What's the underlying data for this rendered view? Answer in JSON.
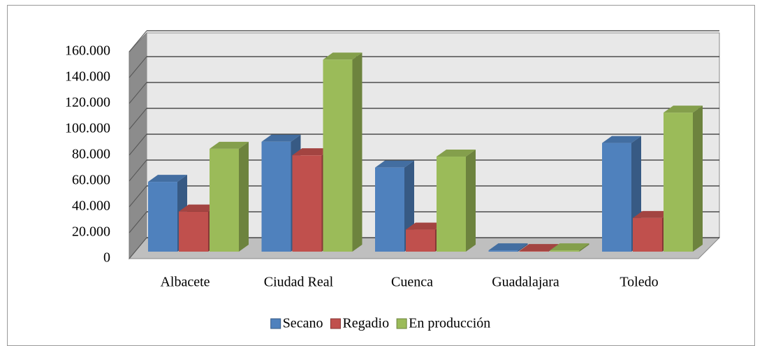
{
  "chart_data": {
    "type": "bar3d",
    "categories": [
      "Albacete",
      "Ciudad Real",
      "Cuenca",
      "Guadalajara",
      "Toledo"
    ],
    "series": [
      {
        "name": "Secano",
        "color": "#4f81bd",
        "values": [
          54000,
          85000,
          65000,
          1000,
          84000
        ]
      },
      {
        "name": "Regadio",
        "color": "#c0504d",
        "values": [
          31000,
          74500,
          17000,
          500,
          26000
        ]
      },
      {
        "name": "En producción",
        "color": "#9bbb59",
        "values": [
          79500,
          148500,
          73500,
          1000,
          107500
        ]
      }
    ],
    "ylim": [
      0,
      160000
    ],
    "yticks": [
      0,
      {
        "value": 20000,
        "label": "20.000"
      },
      {
        "value": 40000,
        "label": "40.000"
      },
      {
        "value": 60000,
        "label": "60.000"
      },
      {
        "value": 80000,
        "label": "80.000"
      },
      {
        "value": 100000,
        "label": "100.000"
      },
      {
        "value": 120000,
        "label": "120.000"
      },
      {
        "value": 140000,
        "label": "140.000"
      },
      {
        "value": 160000,
        "label": "160.000"
      }
    ],
    "grid": true,
    "legend": "bottom"
  }
}
